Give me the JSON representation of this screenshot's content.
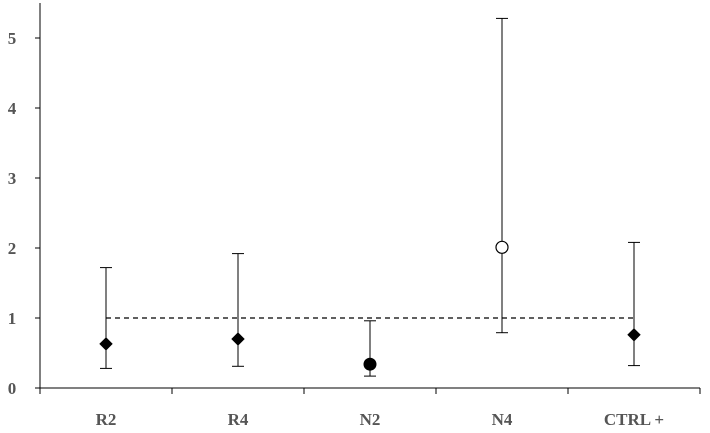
{
  "chart_data": {
    "type": "scatter",
    "title": "",
    "xlabel": "",
    "ylabel": "",
    "categories": [
      "R2",
      "R4",
      "N2",
      "N4",
      "CTRL +"
    ],
    "ylim": [
      0,
      5.5
    ],
    "yticks": [
      0,
      1,
      2,
      3,
      4,
      5
    ],
    "grid": false,
    "reference_line": {
      "y": 1,
      "style": "dashed"
    },
    "points": [
      {
        "category": "R2",
        "value": 0.63,
        "lower": 0.28,
        "upper": 1.72,
        "marker": "diamond",
        "fill": "#000000"
      },
      {
        "category": "R4",
        "value": 0.7,
        "lower": 0.31,
        "upper": 1.92,
        "marker": "diamond",
        "fill": "#000000"
      },
      {
        "category": "N2",
        "value": 0.34,
        "lower": 0.17,
        "upper": 0.96,
        "marker": "circle",
        "fill": "#000000"
      },
      {
        "category": "N4",
        "value": 2.01,
        "lower": 0.79,
        "upper": 5.28,
        "marker": "circle-open",
        "fill": "#ffffff"
      },
      {
        "category": "CTRL +",
        "value": 0.76,
        "lower": 0.32,
        "upper": 2.08,
        "marker": "diamond",
        "fill": "#000000"
      }
    ]
  }
}
